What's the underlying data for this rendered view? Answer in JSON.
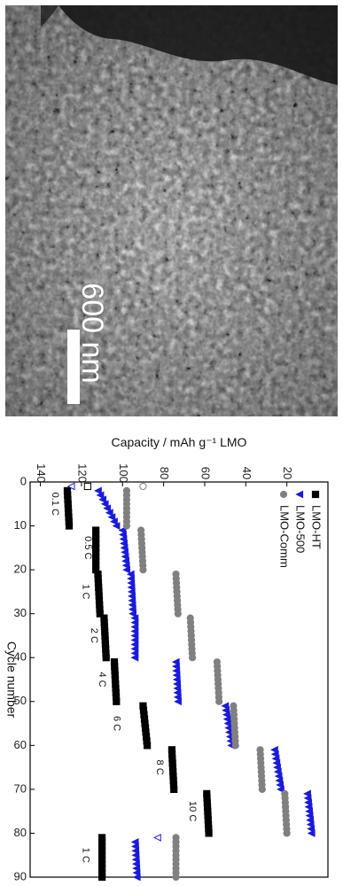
{
  "micrograph": {
    "scale_bar_label": "600 nm"
  },
  "chart_data": {
    "type": "scatter",
    "orientation": "rotated 90 degrees clockwise",
    "xlabel": "Cycle number",
    "ylabel": "Capacity / mAh g⁻¹ LMO",
    "xlim": [
      0,
      90
    ],
    "ylim": [
      0,
      145
    ],
    "xticks": [
      "0",
      "10",
      "20",
      "30",
      "40",
      "50",
      "60",
      "70",
      "80",
      "90"
    ],
    "yticks": [
      "20",
      "40",
      "60",
      "80",
      "100",
      "120",
      "140"
    ],
    "legend_position": "bottom-left",
    "rate_labels": [
      {
        "text": "0.1 C",
        "x": 5,
        "y": 133
      },
      {
        "text": "0.5 C",
        "x": 15,
        "y": 117
      },
      {
        "text": "1 C",
        "x": 25,
        "y": 118
      },
      {
        "text": "2 C",
        "x": 35,
        "y": 114
      },
      {
        "text": "4 C",
        "x": 45,
        "y": 110
      },
      {
        "text": "6 C",
        "x": 55,
        "y": 103
      },
      {
        "text": "8 C",
        "x": 65,
        "y": 82
      },
      {
        "text": "10 C",
        "x": 75,
        "y": 66
      },
      {
        "text": "1 C",
        "x": 85,
        "y": 118
      }
    ],
    "series": [
      {
        "name": "LMO-HT",
        "color": "#000000",
        "marker": "square",
        "segments": [
          {
            "x0": 1,
            "x1": 10,
            "y0": 127,
            "y1": 126,
            "first": 117
          },
          {
            "x0": 11,
            "x1": 20,
            "y0": 113,
            "y1": 113
          },
          {
            "x0": 21,
            "x1": 30,
            "y0": 112,
            "y1": 111
          },
          {
            "x0": 31,
            "x1": 40,
            "y0": 109,
            "y1": 108
          },
          {
            "x0": 41,
            "x1": 50,
            "y0": 104,
            "y1": 103
          },
          {
            "x0": 51,
            "x1": 60,
            "y0": 90,
            "y1": 88
          },
          {
            "x0": 61,
            "x1": 70,
            "y0": 76,
            "y1": 75
          },
          {
            "x0": 71,
            "x1": 80,
            "y0": 59,
            "y1": 58
          },
          {
            "x0": 81,
            "x1": 90,
            "y0": 110,
            "y1": 110
          }
        ]
      },
      {
        "name": "LMO-500",
        "color": "#1a1adb",
        "marker": "triangle",
        "segments": [
          {
            "x0": 1,
            "x1": 10,
            "y0": 113,
            "y1": 103,
            "first": 125
          },
          {
            "x0": 11,
            "x1": 20,
            "y0": 100,
            "y1": 98
          },
          {
            "x0": 21,
            "x1": 30,
            "y0": 96,
            "y1": 95
          },
          {
            "x0": 31,
            "x1": 40,
            "y0": 94,
            "y1": 94
          },
          {
            "x0": 41,
            "x1": 50,
            "y0": 74,
            "y1": 73
          },
          {
            "x0": 51,
            "x1": 60,
            "y0": 50,
            "y1": 47
          },
          {
            "x0": 61,
            "x1": 70,
            "y0": 26,
            "y1": 23
          },
          {
            "x0": 71,
            "x1": 80,
            "y0": 10,
            "y1": 8
          },
          {
            "x0": 81,
            "x1": 90,
            "y0": 94,
            "y1": 93,
            "first": 83
          }
        ]
      },
      {
        "name": "LMO-Comm",
        "color": "#808080",
        "marker": "circle",
        "segments": [
          {
            "x0": 1,
            "x1": 10,
            "y0": 98,
            "y1": 98,
            "first": 90
          },
          {
            "x0": 11,
            "x1": 20,
            "y0": 91,
            "y1": 90
          },
          {
            "x0": 21,
            "x1": 30,
            "y0": 74,
            "y1": 73
          },
          {
            "x0": 31,
            "x1": 40,
            "y0": 67,
            "y1": 66
          },
          {
            "x0": 41,
            "x1": 50,
            "y0": 54,
            "y1": 53
          },
          {
            "x0": 51,
            "x1": 60,
            "y0": 46,
            "y1": 45
          },
          {
            "x0": 61,
            "x1": 70,
            "y0": 33,
            "y1": 32
          },
          {
            "x0": 71,
            "x1": 80,
            "y0": 21,
            "y1": 20
          },
          {
            "x0": 81,
            "x1": 90,
            "y0": 74,
            "y1": 74
          }
        ]
      }
    ]
  }
}
